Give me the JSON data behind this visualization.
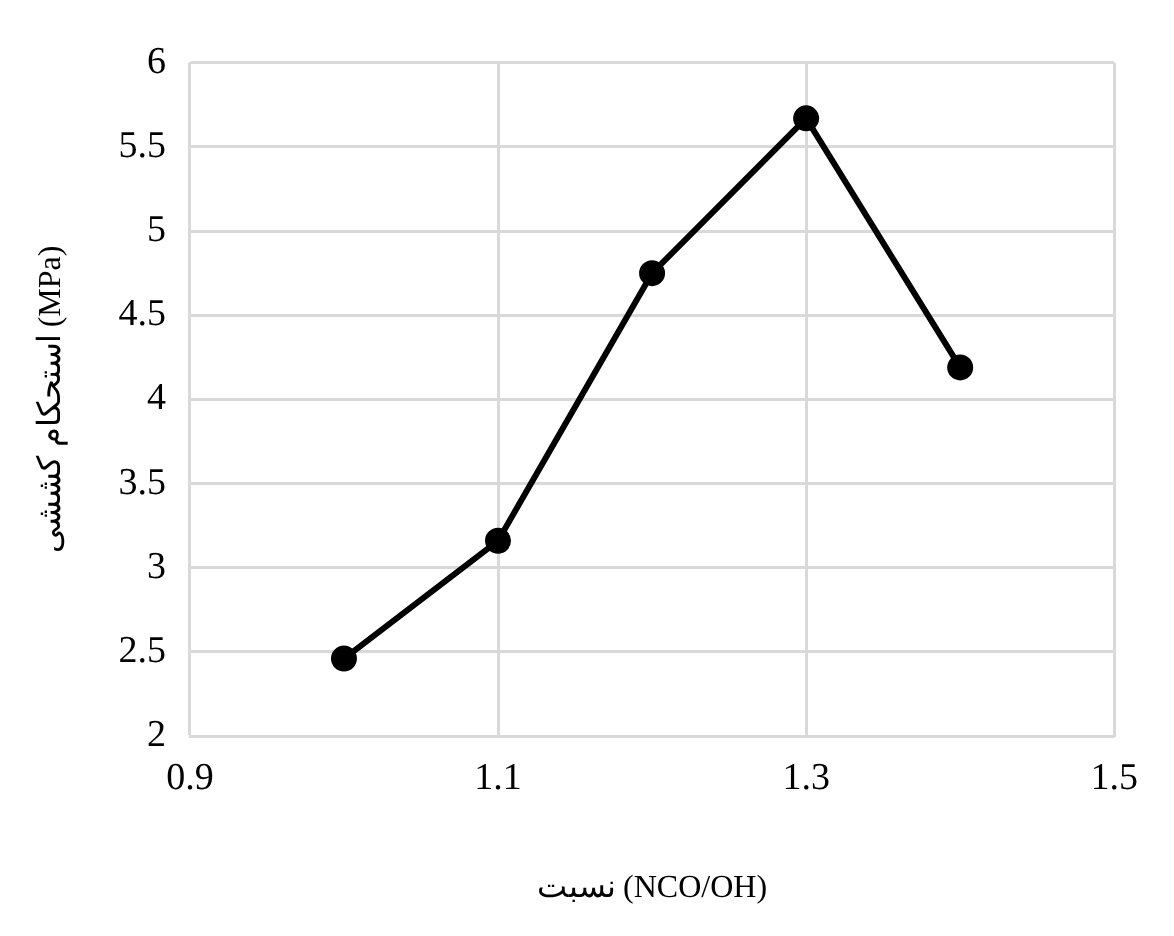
{
  "chart_data": {
    "type": "line",
    "xlabel": "نسبت (NCO/OH)",
    "ylabel": "استحکام کششی (MPa)",
    "x": [
      1.0,
      1.1,
      1.2,
      1.3,
      1.4
    ],
    "series": [
      {
        "color": "#000000",
        "values": [
          2.46,
          3.16,
          4.75,
          5.67,
          4.19
        ]
      }
    ],
    "xlim": [
      0.9,
      1.5
    ],
    "xticks": [
      0.9,
      1.1,
      1.3,
      1.5
    ],
    "ylim": [
      2,
      6
    ],
    "yticks": [
      2,
      2.5,
      3,
      3.5,
      4,
      4.5,
      5,
      5.5,
      6
    ],
    "grid": true,
    "legend": false,
    "marker": "circle",
    "line_style": "solid"
  }
}
